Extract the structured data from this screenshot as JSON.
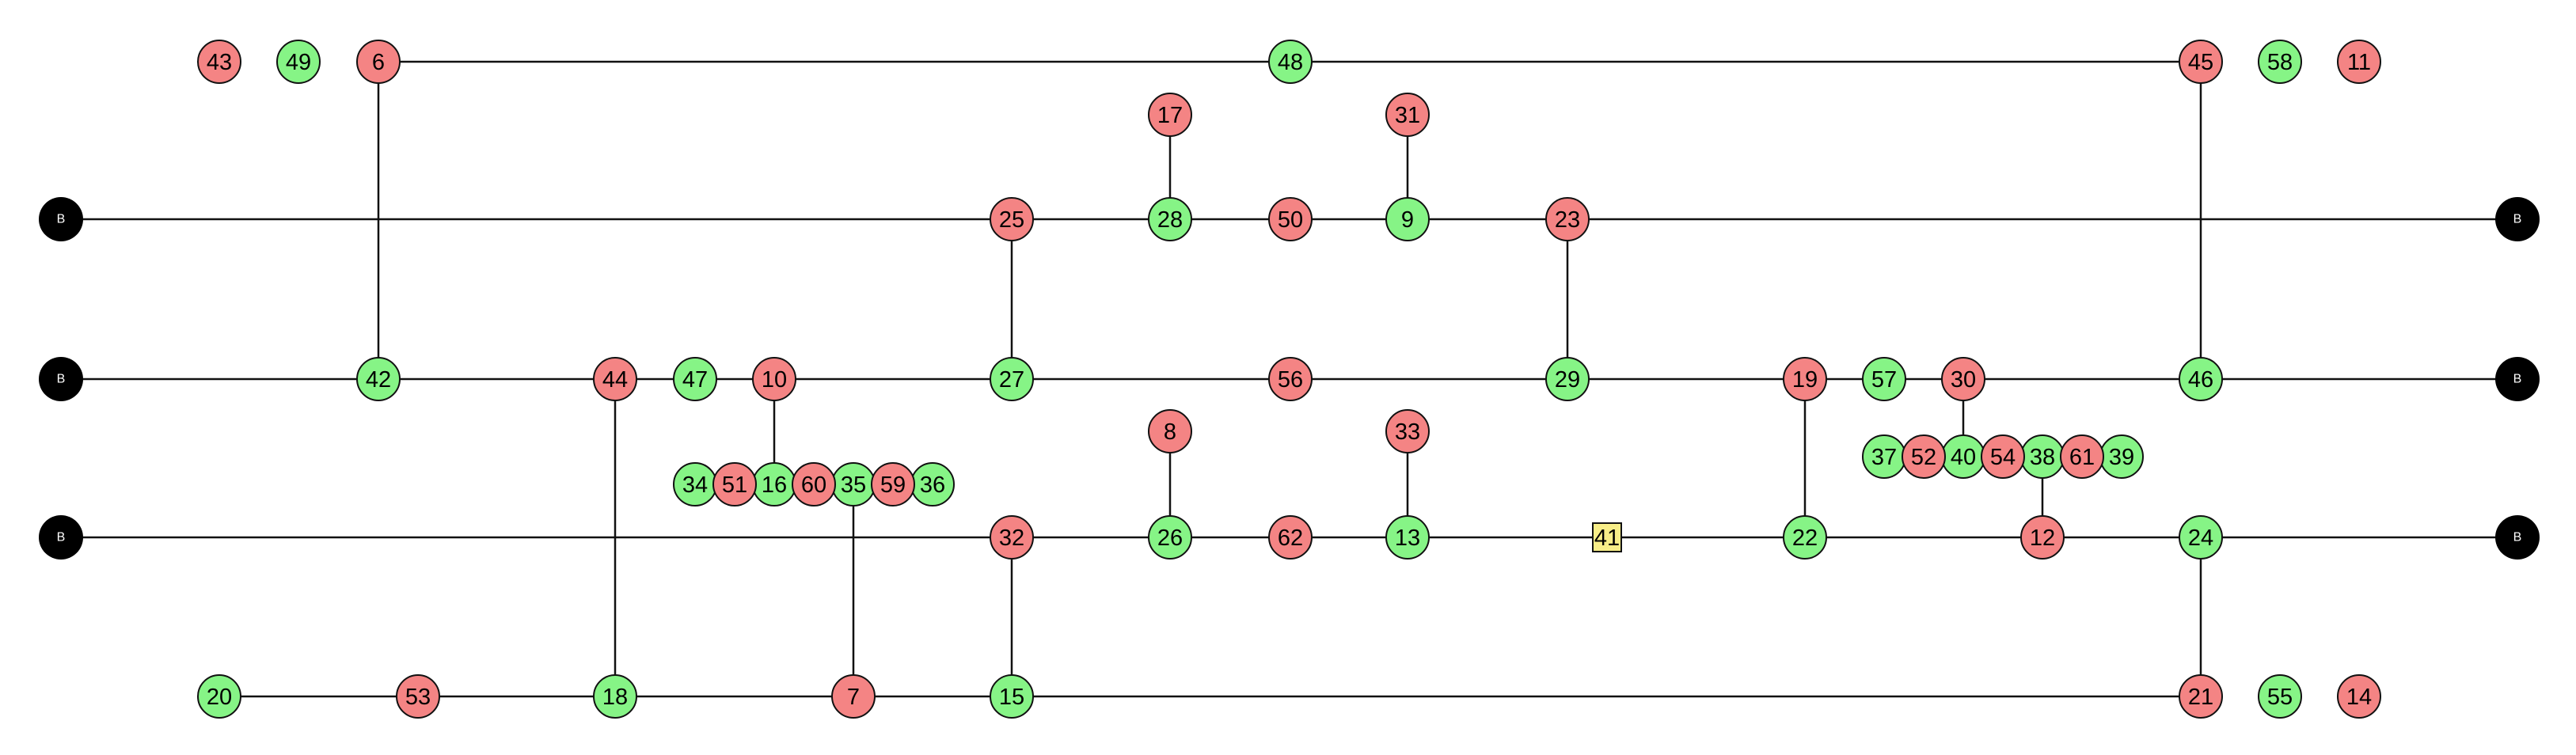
{
  "colors": {
    "red": "#f48484",
    "green": "#86f486",
    "yellow": "#f8ee88",
    "boundary": "#000000",
    "line": "#111111"
  },
  "nodes": {
    "43": {
      "label": "43",
      "color": "red"
    },
    "49": {
      "label": "49",
      "color": "green"
    },
    "6": {
      "label": "6",
      "color": "red"
    },
    "48": {
      "label": "48",
      "color": "green"
    },
    "45": {
      "label": "45",
      "color": "red"
    },
    "58": {
      "label": "58",
      "color": "green"
    },
    "11": {
      "label": "11",
      "color": "red"
    },
    "17": {
      "label": "17",
      "color": "red"
    },
    "31": {
      "label": "31",
      "color": "red"
    },
    "25": {
      "label": "25",
      "color": "red"
    },
    "28": {
      "label": "28",
      "color": "green"
    },
    "50": {
      "label": "50",
      "color": "red"
    },
    "9": {
      "label": "9",
      "color": "green"
    },
    "23": {
      "label": "23",
      "color": "red"
    },
    "42": {
      "label": "42",
      "color": "green"
    },
    "44": {
      "label": "44",
      "color": "red"
    },
    "47": {
      "label": "47",
      "color": "green"
    },
    "10": {
      "label": "10",
      "color": "red"
    },
    "27": {
      "label": "27",
      "color": "green"
    },
    "56": {
      "label": "56",
      "color": "red"
    },
    "29": {
      "label": "29",
      "color": "green"
    },
    "19": {
      "label": "19",
      "color": "red"
    },
    "57": {
      "label": "57",
      "color": "green"
    },
    "30": {
      "label": "30",
      "color": "red"
    },
    "46": {
      "label": "46",
      "color": "green"
    },
    "8": {
      "label": "8",
      "color": "red"
    },
    "33": {
      "label": "33",
      "color": "red"
    },
    "37": {
      "label": "37",
      "color": "green"
    },
    "52": {
      "label": "52",
      "color": "red"
    },
    "40": {
      "label": "40",
      "color": "green"
    },
    "54": {
      "label": "54",
      "color": "red"
    },
    "38": {
      "label": "38",
      "color": "green"
    },
    "61": {
      "label": "61",
      "color": "red"
    },
    "39": {
      "label": "39",
      "color": "green"
    },
    "34": {
      "label": "34",
      "color": "green"
    },
    "51": {
      "label": "51",
      "color": "red"
    },
    "16": {
      "label": "16",
      "color": "green"
    },
    "60": {
      "label": "60",
      "color": "red"
    },
    "35": {
      "label": "35",
      "color": "green"
    },
    "59": {
      "label": "59",
      "color": "red"
    },
    "36": {
      "label": "36",
      "color": "green"
    },
    "32": {
      "label": "32",
      "color": "red"
    },
    "26": {
      "label": "26",
      "color": "green"
    },
    "62": {
      "label": "62",
      "color": "red"
    },
    "13": {
      "label": "13",
      "color": "green"
    },
    "41": {
      "label": "41",
      "color": "yellow",
      "shape": "square"
    },
    "22": {
      "label": "22",
      "color": "green"
    },
    "12": {
      "label": "12",
      "color": "red"
    },
    "24": {
      "label": "24",
      "color": "green"
    },
    "20": {
      "label": "20",
      "color": "green"
    },
    "53": {
      "label": "53",
      "color": "red"
    },
    "18": {
      "label": "18",
      "color": "green"
    },
    "7": {
      "label": "7",
      "color": "red"
    },
    "15": {
      "label": "15",
      "color": "green"
    },
    "21": {
      "label": "21",
      "color": "red"
    },
    "55": {
      "label": "55",
      "color": "green"
    },
    "14": {
      "label": "14",
      "color": "red"
    }
  },
  "boundary_label": "B",
  "edges": [
    [
      "6",
      "45"
    ],
    [
      "B-left-1",
      "B-right-1"
    ],
    [
      "B-left-2",
      "B-right-2"
    ],
    [
      "B-left-3",
      "B-right-3"
    ],
    [
      "20",
      "21"
    ],
    [
      "6",
      "42"
    ],
    [
      "45",
      "46"
    ],
    [
      "17",
      "28"
    ],
    [
      "31",
      "9"
    ],
    [
      "25",
      "27"
    ],
    [
      "23",
      "29"
    ],
    [
      "44",
      "18"
    ],
    [
      "10",
      "16"
    ],
    [
      "19",
      "22"
    ],
    [
      "30",
      "40"
    ],
    [
      "8",
      "26"
    ],
    [
      "33",
      "13"
    ],
    [
      "35",
      "7"
    ],
    [
      "38",
      "12"
    ],
    [
      "32",
      "15"
    ],
    [
      "24",
      "21"
    ]
  ]
}
